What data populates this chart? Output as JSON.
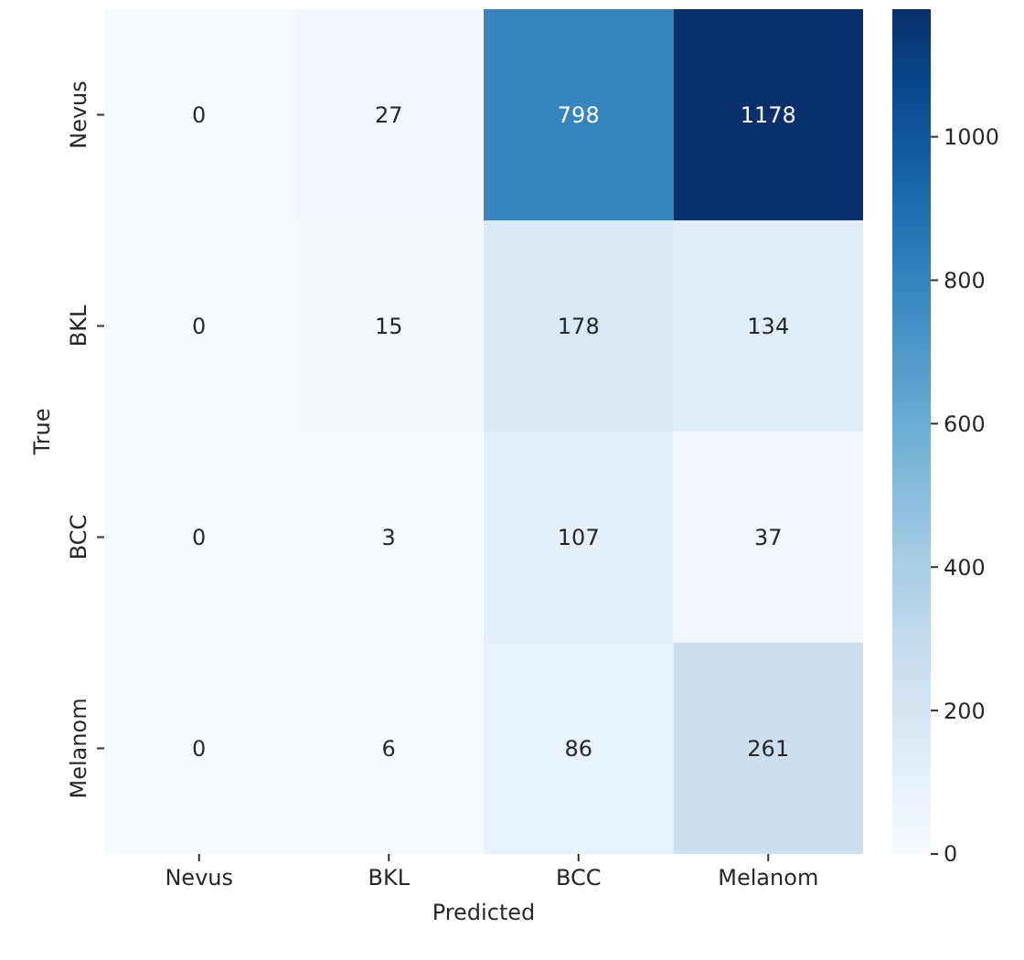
{
  "chart_data": {
    "type": "heatmap",
    "xlabel": "Predicted",
    "ylabel": "True",
    "categories": [
      "Nevus",
      "BKL",
      "BCC",
      "Melanom"
    ],
    "y_categories": [
      "Nevus",
      "BKL",
      "BCC",
      "Melanom"
    ],
    "cells": [
      [
        0,
        27,
        798,
        1178
      ],
      [
        0,
        15,
        178,
        134
      ],
      [
        0,
        3,
        107,
        37
      ],
      [
        0,
        6,
        86,
        261
      ]
    ],
    "data_labels": true,
    "clim": [
      0,
      1178
    ],
    "cticks": [
      0,
      200,
      400,
      600,
      800,
      1000
    ]
  }
}
